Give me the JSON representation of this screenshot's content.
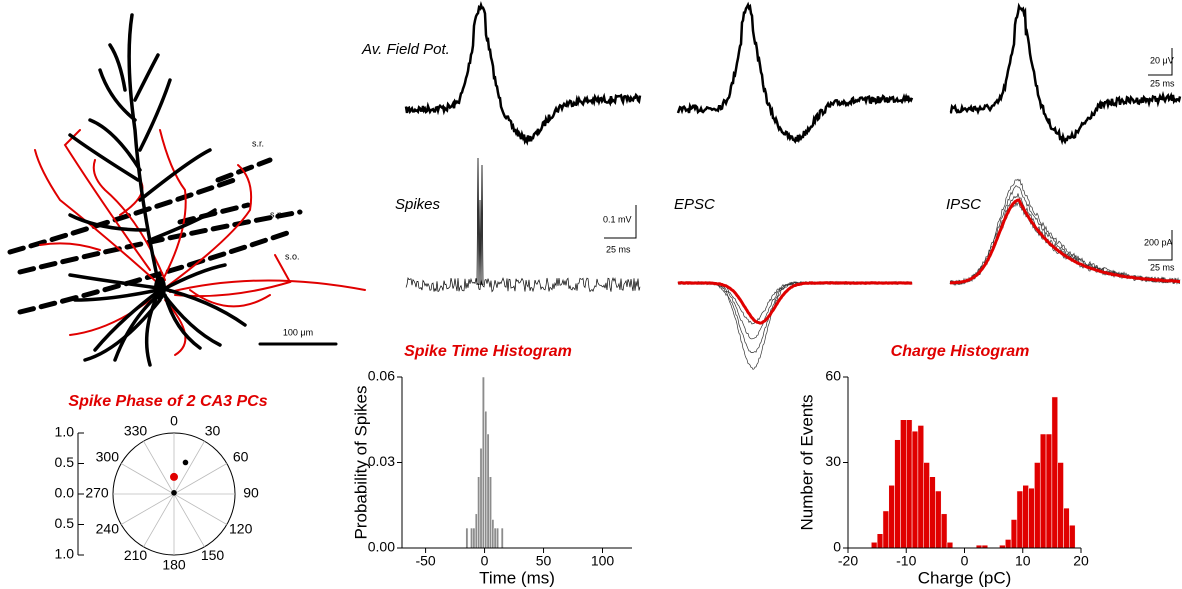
{
  "chart_data": [
    {
      "type": "polar",
      "title": "Spike Phase of 2 CA3 PCs",
      "thetaticks": [
        0,
        30,
        60,
        90,
        120,
        150,
        180,
        210,
        240,
        270,
        300,
        330
      ],
      "rlim": [
        -1,
        1
      ],
      "rticks": [
        {
          "value": 1,
          "label": "1.0"
        },
        {
          "value": 0.5,
          "label": "0.5"
        },
        {
          "value": 0,
          "label": "0.0"
        },
        {
          "value": -0.5,
          "label": "0.5"
        },
        {
          "value": -1,
          "label": "1.0"
        }
      ],
      "series": [
        {
          "color": "#000000",
          "theta": [
            20,
            0
          ],
          "r": [
            0.55,
            0.02
          ]
        },
        {
          "color": "#e00000",
          "theta": [
            0
          ],
          "r": [
            0.28
          ]
        }
      ]
    },
    {
      "type": "histogram",
      "title": "Spike Time Histogram",
      "x_label": "Time (ms)",
      "y_label": "Probability of Spikes",
      "bins": [
        -16,
        -14,
        -12,
        -10,
        -8,
        -6,
        -4,
        -2,
        0,
        2,
        4,
        6,
        8,
        10,
        12,
        14,
        16
      ],
      "values": [
        0.007,
        0,
        0.007,
        0.007,
        0.012,
        0.025,
        0.035,
        0.06,
        0.048,
        0.04,
        0.025,
        0.01,
        0.007,
        0.007,
        0,
        0.007
      ],
      "color": "#8c8c8c",
      "xlim": [
        -70,
        125
      ],
      "xticks": [
        -50,
        0,
        50,
        100
      ],
      "ylim": [
        0,
        0.06
      ],
      "yticks": [
        {
          "value": 0,
          "label": "0.00"
        },
        0.03,
        0.06
      ]
    },
    {
      "type": "histogram",
      "title": "Charge Histogram",
      "x_label": "Charge (pC)",
      "y_label": "Number of Events",
      "bins": [
        -16,
        -15,
        -14,
        -13,
        -12,
        -11,
        -10,
        -9,
        -8,
        -7,
        -6,
        -5,
        -4,
        -3,
        -2,
        -1,
        0,
        1,
        2,
        3,
        4,
        5,
        6,
        7,
        8,
        9,
        10,
        11,
        12,
        13,
        14,
        15,
        16,
        17,
        18,
        19
      ],
      "values": [
        2,
        5,
        13,
        22,
        38,
        45,
        45,
        41,
        43,
        30,
        25,
        20,
        12,
        2,
        0,
        0,
        0,
        0,
        1,
        1,
        0,
        0,
        1,
        3,
        10,
        20,
        22,
        21,
        30,
        40,
        40,
        53,
        30,
        14,
        8
      ],
      "color": "#e00000",
      "xlim": [
        -20,
        20
      ],
      "xticks": [
        -20,
        -10,
        0,
        10,
        20
      ],
      "ylim": [
        0,
        60
      ],
      "yticks": [
        0,
        30,
        60
      ]
    }
  ],
  "morphology": {
    "layers": [
      "s.r.",
      "s.p.",
      "s.o."
    ],
    "scale_bar": "100 μm"
  },
  "traces": {
    "field_label": "Av. Field Pot.",
    "spikes_label": "Spikes",
    "epsc_label": "EPSC",
    "ipsc_label": "IPSC",
    "field_scale_v": "20 μV",
    "field_scale_t": "25 ms",
    "spikes_scale_v": "0.1 mV",
    "spikes_scale_t": "25 ms",
    "ipsc_scale_v": "200 pA",
    "ipsc_scale_t": "25 ms"
  }
}
